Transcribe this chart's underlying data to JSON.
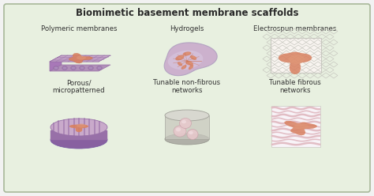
{
  "title": "Biomimetic basement membrane scaffolds",
  "bg_color": "#e8f0e0",
  "border_color": "#a8b89a",
  "outer_bg": "#f2f2f2",
  "labels_top": [
    "Polymeric membranes",
    "Hydrogels",
    "Electrospun membranes"
  ],
  "labels_bottom": [
    "Porous/\nmicropatterned",
    "Tunable non-fibrous\nnetworks",
    "Tunable fibrous\nnetworks"
  ],
  "purple_light": "#c9aacb",
  "purple_mid": "#b090b8",
  "purple_dark": "#9870a8",
  "purple_side": "#a878b8",
  "salmon": "#cc7050",
  "salmon_light": "#e09878",
  "salmon_mid": "#d88060",
  "gray_light": "#c8c8c0",
  "gray_mid": "#b0b0a8",
  "gray_dark": "#989890",
  "pink_light": "#e8c8cc",
  "pink_wave": "#e0b8c0",
  "grid_color": "#c8c8b8",
  "cyl_color": "#c8c8be",
  "cyl_edge": "#a0a098",
  "white_bg": "#f8f4f0"
}
